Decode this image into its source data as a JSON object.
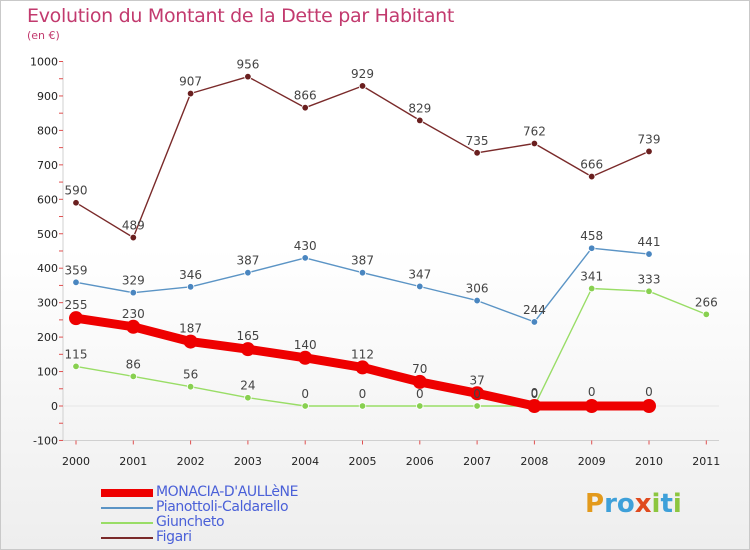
{
  "header": {
    "title": "Evolution du Montant de la Dette par Habitant",
    "subtitle": "(en €)"
  },
  "logo": {
    "text": "Proxiti"
  },
  "chart_data": {
    "type": "line",
    "title": "Evolution du Montant de la Dette par Habitant",
    "subtitle": "(en €)",
    "xlabel": "",
    "ylabel": "",
    "x": [
      "2000",
      "2001",
      "2002",
      "2003",
      "2004",
      "2005",
      "2006",
      "2007",
      "2008",
      "2009",
      "2010",
      "2011"
    ],
    "ylim": [
      -100,
      1000
    ],
    "yticks": [
      -100,
      0,
      100,
      200,
      300,
      400,
      500,
      600,
      700,
      800,
      900,
      1000
    ],
    "grid": false,
    "legend": "bottom-left",
    "series": [
      {
        "name": "MONACIA-D'AULLèNE",
        "color": "#ee0000",
        "values": [
          255,
          230,
          187,
          165,
          140,
          112,
          70,
          37,
          0,
          0,
          0,
          null
        ]
      },
      {
        "name": "Pianottoli-Caldarello",
        "color": "#5b94c5",
        "values": [
          359,
          329,
          346,
          387,
          430,
          387,
          347,
          306,
          244,
          458,
          441,
          null
        ]
      },
      {
        "name": "Giuncheto",
        "color": "#99dd66",
        "values": [
          115,
          86,
          56,
          24,
          0,
          0,
          0,
          0,
          0,
          341,
          333,
          266
        ]
      },
      {
        "name": "Figari",
        "color": "#7a2a2a",
        "values": [
          590,
          489,
          907,
          956,
          866,
          929,
          829,
          735,
          762,
          666,
          739,
          null
        ]
      }
    ]
  }
}
